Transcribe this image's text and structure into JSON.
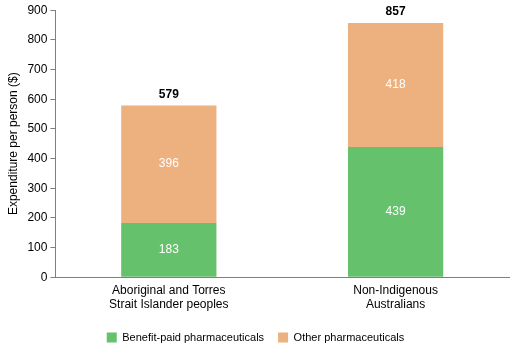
{
  "chart_data": {
    "type": "bar",
    "categories": [
      "Aboriginal and Torres Strait Islander peoples",
      "Non-Indigenous Australians"
    ],
    "series": [
      {
        "name": "Benefit-paid pharmaceuticals",
        "color": "#66c16c",
        "values": [
          183,
          439
        ]
      },
      {
        "name": "Other pharmaceuticals",
        "color": "#edb07f",
        "values": [
          396,
          418
        ]
      }
    ],
    "totals": [
      579,
      857
    ],
    "y_label": "Expenditure per person ($)",
    "ylim": [
      0,
      900
    ],
    "yticks": [
      0,
      100,
      200,
      300,
      400,
      500,
      600,
      700,
      800,
      900
    ],
    "stacked": true,
    "data_labels": true,
    "grid": false,
    "legend": "bottom"
  }
}
